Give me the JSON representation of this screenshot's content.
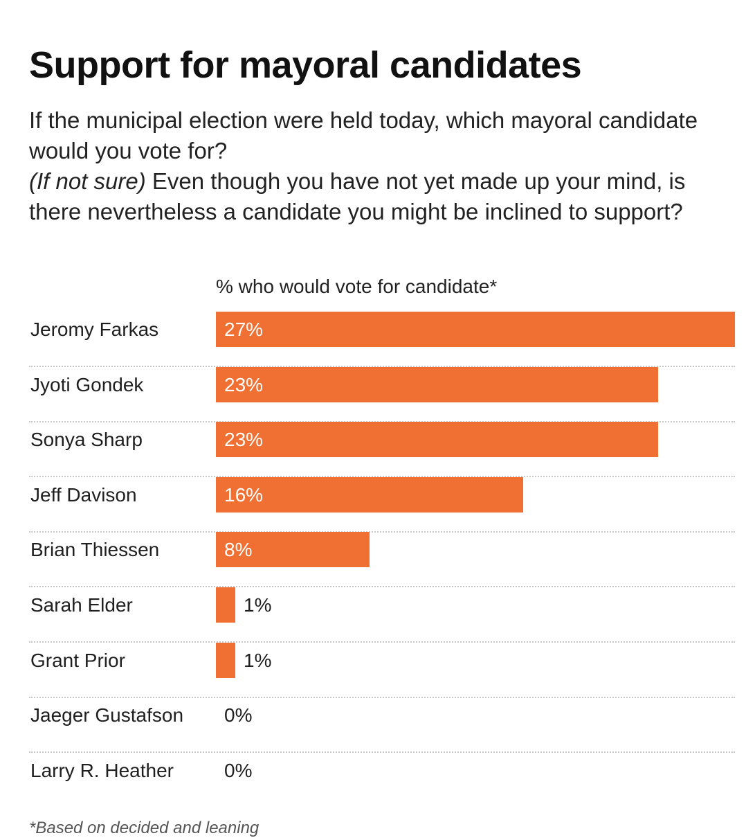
{
  "chart_data": {
    "type": "bar",
    "orientation": "horizontal",
    "title": "Support for mayoral candidates",
    "subtitle": {
      "line1": "If the municipal election were held today, which mayoral candidate would you vote for?",
      "qualifier": "(If not sure)",
      "line2": " Even though you have not yet made up your mind, is there nevertheless a candidate you might be inclined to support?"
    },
    "xlabel": "% who would vote for candidate*",
    "categories": [
      "Jeromy Farkas",
      "Jyoti Gondek",
      "Sonya Sharp",
      "Jeff Davison",
      "Brian Thiessen",
      "Sarah Elder",
      "Grant Prior",
      "Jaeger Gustafson",
      "Larry R. Heather"
    ],
    "values": [
      27,
      23,
      23,
      16,
      8,
      1,
      1,
      0,
      0
    ],
    "value_labels": [
      "27%",
      "23%",
      "23%",
      "16%",
      "8%",
      "1%",
      "1%",
      "0%",
      "0%"
    ],
    "xlim": [
      0,
      27
    ],
    "grid": false,
    "legend": "none",
    "bar_color": "#f07033",
    "footnote": "*Based on decided and leaning"
  }
}
